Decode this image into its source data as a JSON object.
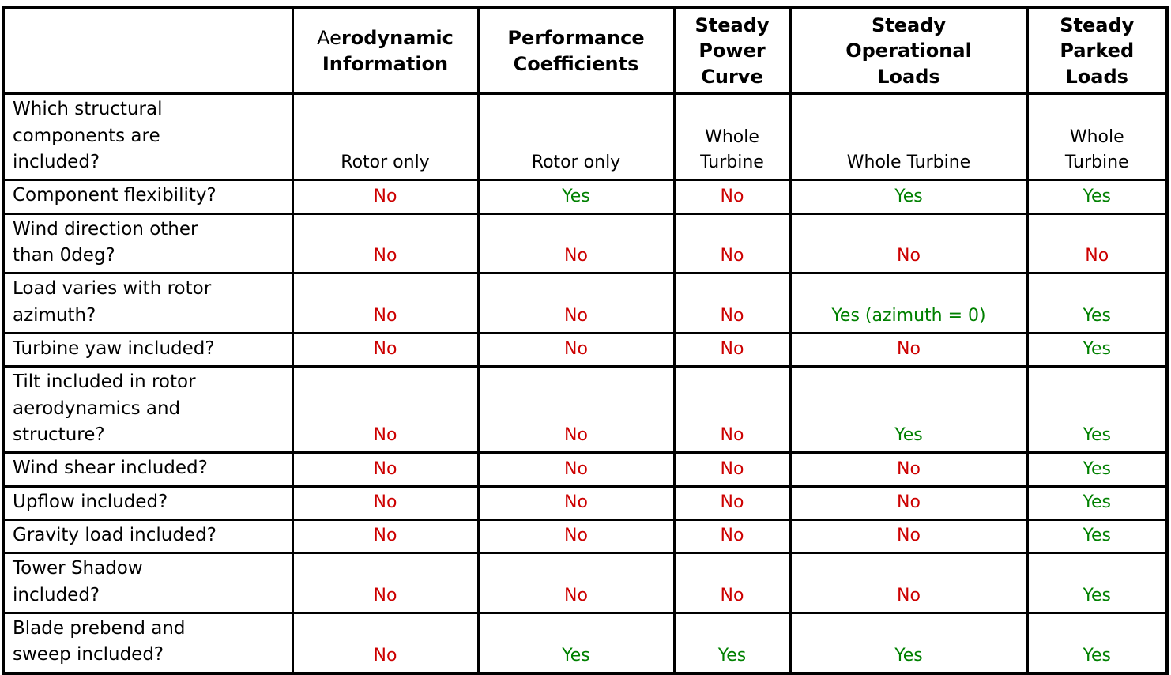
{
  "colors": {
    "yes_green": "#008000",
    "no_red": "#cc0000",
    "text_black": "#000000",
    "border_black": "#000000",
    "background_white": "#ffffff"
  },
  "table": {
    "columns": [
      {
        "id": "row-label",
        "header_regular": "",
        "header_bold": ""
      },
      {
        "id": "aerodynamic-information",
        "header_regular": "Ae",
        "header_bold": "rodynamic\nInformation"
      },
      {
        "id": "performance-coefficients",
        "header_regular": "",
        "header_bold": "Performance\nCoefficients"
      },
      {
        "id": "steady-power-curve",
        "header_regular": "",
        "header_bold": "Steady\nPower\nCurve"
      },
      {
        "id": "steady-operational-loads",
        "header_regular": "",
        "header_bold": "Steady\nOperational\nLoads"
      },
      {
        "id": "steady-parked-loads",
        "header_regular": "",
        "header_bold": "Steady\nParked\nLoads"
      }
    ],
    "rows": [
      {
        "label": "Which structural\ncomponents are\nincluded?",
        "cells": [
          {
            "text": "Rotor only",
            "status": "plain"
          },
          {
            "text": "Rotor only",
            "status": "plain"
          },
          {
            "text": "Whole\nTurbine",
            "status": "plain"
          },
          {
            "text": "Whole Turbine",
            "status": "plain"
          },
          {
            "text": "Whole\nTurbine",
            "status": "plain"
          }
        ]
      },
      {
        "label": "Component flexibility?",
        "cells": [
          {
            "text": "No",
            "status": "no"
          },
          {
            "text": "Yes",
            "status": "yes"
          },
          {
            "text": "No",
            "status": "no"
          },
          {
            "text": "Yes",
            "status": "yes"
          },
          {
            "text": "Yes",
            "status": "yes"
          }
        ]
      },
      {
        "label": "Wind direction other\nthan 0deg?",
        "cells": [
          {
            "text": "No",
            "status": "no"
          },
          {
            "text": "No",
            "status": "no"
          },
          {
            "text": "No",
            "status": "no"
          },
          {
            "text": "No",
            "status": "no"
          },
          {
            "text": "No",
            "status": "no"
          }
        ]
      },
      {
        "label": "Load varies with rotor\nazimuth?",
        "cells": [
          {
            "text": "No",
            "status": "no"
          },
          {
            "text": "No",
            "status": "no"
          },
          {
            "text": "No",
            "status": "no"
          },
          {
            "text": "Yes (azimuth = 0)",
            "status": "yes"
          },
          {
            "text": "Yes",
            "status": "yes"
          }
        ]
      },
      {
        "label": "Turbine yaw included?",
        "cells": [
          {
            "text": "No",
            "status": "no"
          },
          {
            "text": "No",
            "status": "no"
          },
          {
            "text": "No",
            "status": "no"
          },
          {
            "text": "No",
            "status": "no"
          },
          {
            "text": "Yes",
            "status": "yes"
          }
        ]
      },
      {
        "label": "Tilt included in rotor\naerodynamics and\nstructure?",
        "cells": [
          {
            "text": "No",
            "status": "no"
          },
          {
            "text": "No",
            "status": "no"
          },
          {
            "text": "No",
            "status": "no"
          },
          {
            "text": "Yes",
            "status": "yes"
          },
          {
            "text": "Yes",
            "status": "yes"
          }
        ]
      },
      {
        "label": "Wind shear included?",
        "cells": [
          {
            "text": "No",
            "status": "no"
          },
          {
            "text": "No",
            "status": "no"
          },
          {
            "text": "No",
            "status": "no"
          },
          {
            "text": "No",
            "status": "no"
          },
          {
            "text": "Yes",
            "status": "yes"
          }
        ]
      },
      {
        "label": "Upflow included?",
        "cells": [
          {
            "text": "No",
            "status": "no"
          },
          {
            "text": "No",
            "status": "no"
          },
          {
            "text": "No",
            "status": "no"
          },
          {
            "text": "No",
            "status": "no"
          },
          {
            "text": "Yes",
            "status": "yes"
          }
        ]
      },
      {
        "label": "Gravity load included?",
        "cells": [
          {
            "text": "No",
            "status": "no"
          },
          {
            "text": "No",
            "status": "no"
          },
          {
            "text": "No",
            "status": "no"
          },
          {
            "text": "No",
            "status": "no"
          },
          {
            "text": "Yes",
            "status": "yes"
          }
        ]
      },
      {
        "label": "Tower Shadow\nincluded?",
        "cells": [
          {
            "text": "No",
            "status": "no"
          },
          {
            "text": "No",
            "status": "no"
          },
          {
            "text": "No",
            "status": "no"
          },
          {
            "text": "No",
            "status": "no"
          },
          {
            "text": "Yes",
            "status": "yes"
          }
        ]
      },
      {
        "label": "Blade prebend and\nsweep included?",
        "cells": [
          {
            "text": "No",
            "status": "no"
          },
          {
            "text": "Yes",
            "status": "yes"
          },
          {
            "text": "Yes",
            "status": "yes"
          },
          {
            "text": "Yes",
            "status": "yes"
          },
          {
            "text": "Yes",
            "status": "yes"
          }
        ]
      }
    ]
  }
}
